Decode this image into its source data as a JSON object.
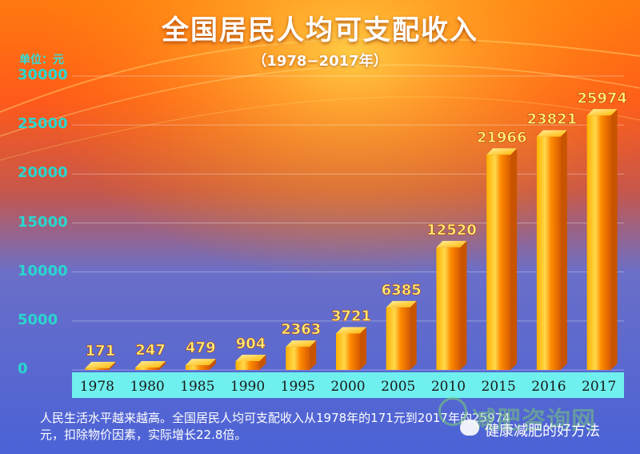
{
  "chart_data": {
    "type": "bar",
    "title": "全国居民人均可支配收入",
    "subtitle": "（1978−2017年）",
    "unit_label": "单位：元",
    "categories": [
      "1978",
      "1980",
      "1985",
      "1990",
      "1995",
      "2000",
      "2005",
      "2010",
      "2015",
      "2016",
      "2017"
    ],
    "values": [
      171,
      247,
      479,
      904,
      2363,
      3721,
      6385,
      12520,
      21966,
      23821,
      25974
    ],
    "value_labels": [
      "171",
      "247",
      "479",
      "904",
      "2363",
      "3721",
      "6385",
      "12520",
      "21966",
      "23821",
      "25974"
    ],
    "yticks": [
      0,
      5000,
      10000,
      15000,
      20000,
      25000,
      30000
    ],
    "ytick_labels": [
      "0",
      "5000",
      "10000",
      "15000",
      "20000",
      "25000",
      "30000"
    ],
    "ylim": [
      0,
      30000
    ],
    "grid": true,
    "colors": {
      "bar": "#ff9a00",
      "bar_highlight": "#ffd84a",
      "value_label": "#fff27a",
      "axis_label": "#2ad6cf",
      "category_bar": "#6ff0ee"
    }
  },
  "caption": {
    "line1": "人民生活水平越来越高。全国居民人均可支配收入从1978年的171元到2017年的25974",
    "line2": "元，扣除物价因素，实际增长22.8倍。"
  },
  "watermark": {
    "text": "减肥咨询网",
    "brand": "健康减肥的好方法"
  }
}
